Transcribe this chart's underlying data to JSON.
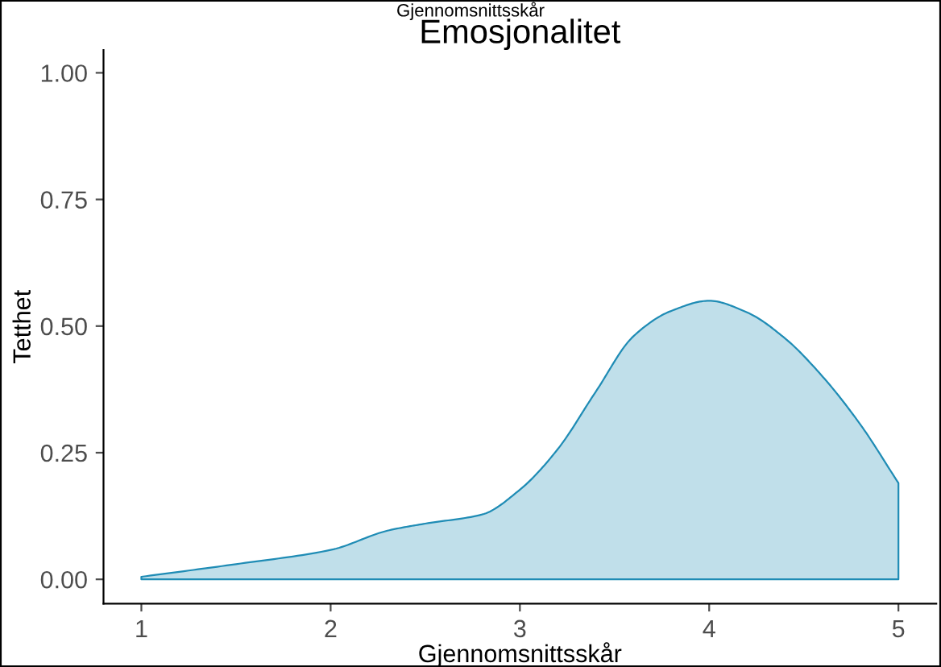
{
  "chart_data": {
    "type": "area",
    "title": "Emosjonalitet",
    "xlabel": "Gjennomsnittsskår",
    "ylabel": "Tetthet",
    "annotations": [
      "Gjennomsnittsskår"
    ],
    "x": [
      1,
      1.5,
      2,
      2.3,
      2.5,
      2.8,
      3,
      3.2,
      3.4,
      3.6,
      3.8,
      4,
      4.2,
      4.4,
      4.6,
      4.8,
      5
    ],
    "series": [
      {
        "color": "#1f8cb5",
        "values": [
          0.005,
          0.03,
          0.058,
          0.096,
          0.11,
          0.128,
          0.177,
          0.257,
          0.37,
          0.48,
          0.53,
          0.55,
          0.527,
          0.476,
          0.4,
          0.305,
          0.19
        ]
      }
    ],
    "xlim": [
      0.8,
      5.2
    ],
    "xticks": [
      1,
      2,
      3,
      4,
      5
    ],
    "ylim": [
      -0.048,
      1.045
    ],
    "yticks": [
      {
        "value": 0,
        "label": "0.00"
      },
      {
        "value": 0.25,
        "label": "0.25"
      },
      {
        "value": 0.5,
        "label": "0.50"
      },
      {
        "value": 0.75,
        "label": "0.75"
      },
      {
        "value": 1,
        "label": "1.00"
      }
    ],
    "grid": false,
    "legend": false
  }
}
